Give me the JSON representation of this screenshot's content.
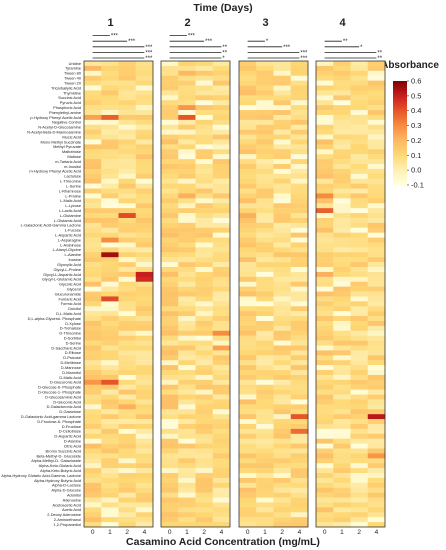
{
  "chart_data": {
    "type": "heatmap",
    "title": "Time (Days)",
    "xlabel": "Casamino Acid Concentration (mg/mL)",
    "ylabel": "",
    "panels": [
      {
        "label": "1",
        "significance": [
          "***",
          "***",
          "***",
          "***",
          "***"
        ]
      },
      {
        "label": "2",
        "significance": [
          "***",
          "***",
          "**",
          "**",
          "*"
        ]
      },
      {
        "label": "3",
        "significance": [
          "*",
          "***",
          "***",
          "***"
        ]
      },
      {
        "label": "4",
        "significance": [
          "**",
          "*",
          "**",
          "**"
        ]
      }
    ],
    "columns": [
      "0",
      "1",
      "2",
      "4"
    ],
    "colorbar": {
      "title": "Absorbance",
      "min": -0.1,
      "max": 0.6,
      "ticks": [
        "0.6",
        "0.5",
        "0.4",
        "0.3",
        "0.2",
        "0.1",
        "0.0",
        "-0.1"
      ]
    },
    "colors": {
      "low": "#ffffe0",
      "mid": "#fdb863",
      "high": "#7f0000"
    },
    "rows": [
      "Uridine",
      "Tyramine",
      "Tween 80",
      "Tween 40",
      "Tween 20",
      "Tricarballylic Acid",
      "Thymidine",
      "Succinic Acid",
      "Pyruvic Acid",
      "Phosphoric Acid",
      "Phenylethyl-amine",
      "p-Hydroxy Phenyl Acetic Acid",
      "Negative Control",
      "N-Acetyl-D-Glucosamine",
      "N-Acetyl-Beta-D-Mannosamine",
      "Mucic Acid",
      "Mono Methyl Succinate",
      "Methyl Pyruvate",
      "Maltotriose",
      "Maltose",
      "m-Tartaric Acid",
      "m-Inositol",
      "m-Hydroxy Phenyl Acetic Acid",
      "Lactulose",
      "L-Threonine",
      "L-Serine",
      "L-Rhamnose",
      "L-Proline",
      "L-Malic Acid",
      "L-Lyxose",
      "L-Lactic Acid",
      "L-Glutamine",
      "L-Glutamic Acid",
      "L-Galactonic Acid-Gamma Lactone",
      "L-Fucose",
      "L-Aspartic Acid",
      "L-Asparagine",
      "L-Arabinose",
      "L-Alanyl-Glycine",
      "L-Alanine",
      "Inosine",
      "Glyoxylic Acid",
      "Glycyl-L-Proline",
      "Glycyl-L-Aspartic Acid",
      "Glycyl-L-Glutamic Acid",
      "Glycolic Acid",
      "Glycerol",
      "Glucuronamide",
      "Fumaric Acid",
      "Formic Acid",
      "Dulcitol",
      "D,L-Malic Acid",
      "D,L-alpha-Glycerol- Phosphate",
      "D-Xylose",
      "D-Trehalose",
      "D-Threonine",
      "D-Sorbitol",
      "D-Serine",
      "D-Saccharic Acid",
      "D-Ribose",
      "D-Psicose",
      "D-Melibiose",
      "D-Mannose",
      "D-Mannitol",
      "D-Malic Acid",
      "D-Glucuronic Acid",
      "D-Glucose-6- Phosphate",
      "D-Glucose-1- Phosphate",
      "D-Glucosaminic Acid",
      "D-Gluconic Acid",
      "D-Galacturonic Acid",
      "D-Galactose",
      "D-Galactonic Acid-gamma Lactone",
      "D-Fructose-6- Phosphate",
      "D-Fructose",
      "D-Cellobiose",
      "D-Aspartic Acid",
      "D-Alanine",
      "Citric Acid",
      "Bromo Succinic Acid",
      "Beta-Methyl-D- Glucoside",
      "Alpha-Methyl-D- Galactoside",
      "Alpha-Keto-Glutaric Acid",
      "Alpha-Keto-Butyric Acid",
      "Alpha-Hydroxy Glutaric Acid-Gamma- Lactone",
      "Alpha-Hydroxy Butyric Acid",
      "Alpha-D-Lactose",
      "Alpha-D-Glucose",
      "Adonitol",
      "Adenosine",
      "Acetoacetic Acid",
      "Acetic Acid",
      "2-Deoxy Adenosine",
      "2-Aminoethanol",
      "1,2-Propanediol"
    ]
  }
}
